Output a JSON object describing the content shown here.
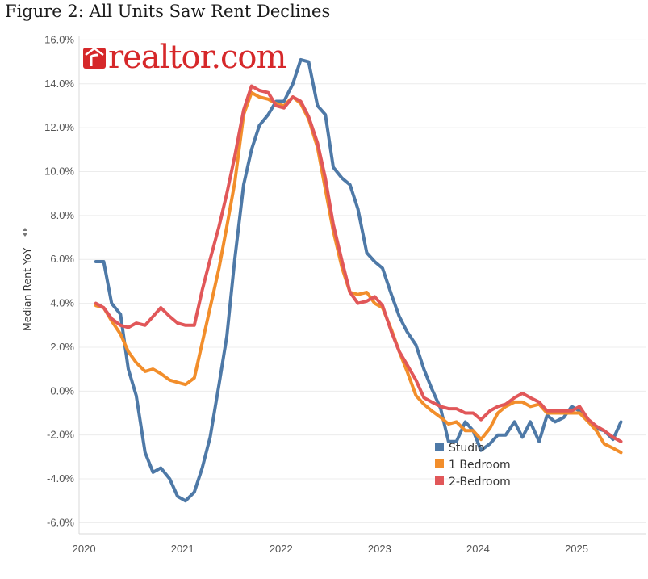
{
  "figure": {
    "title": "Figure 2: All Units Saw Rent Declines"
  },
  "logo": {
    "text": "realtor.com",
    "color": "#d6282a"
  },
  "chart_data": {
    "type": "line",
    "ylabel": "Median Rent YoY",
    "ylabel_icon": "sort-icon",
    "xlabel": "",
    "ylim": [
      -6.5,
      16.2
    ],
    "xlim": [
      2020.0,
      2025.75
    ],
    "yticks": [
      16,
      14,
      12,
      10,
      8,
      6,
      4,
      2,
      0,
      -2,
      -4,
      -6
    ],
    "ytick_labels": [
      "16.0%",
      "14.0%",
      "12.0%",
      "10.0%",
      "8.0%",
      "6.0%",
      "4.0%",
      "2.0%",
      "0.0%",
      "-2.0%",
      "-4.0%",
      "-6.0%"
    ],
    "xticks": [
      2020,
      2021,
      2022,
      2023,
      2024,
      2025
    ],
    "xtick_labels": [
      "2020",
      "2021",
      "2022",
      "2023",
      "2024",
      "2025"
    ],
    "grid": true,
    "legend_position": "bottom-right",
    "x": [
      2020.17,
      2020.25,
      2020.33,
      2020.42,
      2020.5,
      2020.58,
      2020.67,
      2020.75,
      2020.83,
      2020.92,
      2021.0,
      2021.08,
      2021.17,
      2021.25,
      2021.33,
      2021.42,
      2021.5,
      2021.58,
      2021.67,
      2021.75,
      2021.83,
      2021.92,
      2022.0,
      2022.08,
      2022.17,
      2022.25,
      2022.33,
      2022.42,
      2022.5,
      2022.58,
      2022.67,
      2022.75,
      2022.83,
      2022.92,
      2023.0,
      2023.08,
      2023.17,
      2023.25,
      2023.33,
      2023.42,
      2023.5,
      2023.58,
      2023.67,
      2023.75,
      2023.83,
      2023.92,
      2024.0,
      2024.08,
      2024.17,
      2024.25,
      2024.33,
      2024.42,
      2024.5,
      2024.58,
      2024.67,
      2024.75,
      2024.83,
      2024.92,
      2025.0,
      2025.08,
      2025.17,
      2025.25,
      2025.33,
      2025.42,
      2025.5
    ],
    "series": [
      {
        "name": "Studio",
        "color": "#4e79a7",
        "values": [
          5.9,
          5.9,
          4.0,
          3.5,
          1.0,
          -0.2,
          -2.8,
          -3.7,
          -3.5,
          -4.0,
          -4.8,
          -5.0,
          -4.6,
          -3.5,
          -2.1,
          0.3,
          2.5,
          6.0,
          9.4,
          11.0,
          12.1,
          12.6,
          13.2,
          13.2,
          14.0,
          15.1,
          15.0,
          13.0,
          12.6,
          10.2,
          9.7,
          9.4,
          8.3,
          6.3,
          5.9,
          5.6,
          4.4,
          3.4,
          2.7,
          2.1,
          1.0,
          0.1,
          -0.8,
          -2.3,
          -2.3,
          -1.4,
          -1.8,
          -2.7,
          -2.4,
          -2.0,
          -2.0,
          -1.4,
          -2.1,
          -1.4,
          -2.3,
          -1.1,
          -1.4,
          -1.2,
          -0.7,
          -0.9,
          -1.4,
          -1.7,
          -1.8,
          -2.2,
          -1.4
        ]
      },
      {
        "name": "1 Bedroom",
        "color": "#f28e2b",
        "values": [
          3.9,
          3.8,
          3.2,
          2.6,
          1.8,
          1.3,
          0.9,
          1.0,
          0.8,
          0.5,
          0.4,
          0.3,
          0.6,
          2.2,
          3.8,
          5.6,
          7.5,
          9.5,
          12.6,
          13.6,
          13.4,
          13.3,
          13.1,
          13.0,
          13.4,
          13.1,
          12.4,
          11.1,
          9.2,
          7.3,
          5.6,
          4.5,
          4.4,
          4.5,
          4.0,
          3.8,
          2.8,
          1.8,
          0.9,
          -0.2,
          -0.6,
          -0.9,
          -1.2,
          -1.5,
          -1.4,
          -1.8,
          -1.8,
          -2.2,
          -1.7,
          -1.0,
          -0.7,
          -0.5,
          -0.5,
          -0.7,
          -0.6,
          -1.0,
          -1.0,
          -1.0,
          -1.0,
          -1.0,
          -1.4,
          -1.8,
          -2.4,
          -2.6,
          -2.8
        ]
      },
      {
        "name": "2-Bedroom",
        "color": "#e15759",
        "values": [
          4.0,
          3.8,
          3.3,
          3.0,
          2.9,
          3.1,
          3.0,
          3.4,
          3.8,
          3.4,
          3.1,
          3.0,
          3.0,
          4.6,
          6.0,
          7.5,
          9.0,
          10.7,
          12.8,
          13.9,
          13.7,
          13.6,
          13.0,
          12.9,
          13.4,
          13.2,
          12.5,
          11.3,
          9.7,
          7.6,
          5.9,
          4.5,
          4.0,
          4.1,
          4.3,
          3.9,
          2.7,
          1.8,
          1.2,
          0.5,
          -0.3,
          -0.5,
          -0.7,
          -0.8,
          -0.8,
          -1.0,
          -1.0,
          -1.3,
          -0.9,
          -0.7,
          -0.6,
          -0.3,
          -0.1,
          -0.3,
          -0.5,
          -0.9,
          -0.9,
          -0.9,
          -0.9,
          -0.7,
          -1.3,
          -1.6,
          -1.8,
          -2.1,
          -2.3
        ]
      }
    ]
  }
}
